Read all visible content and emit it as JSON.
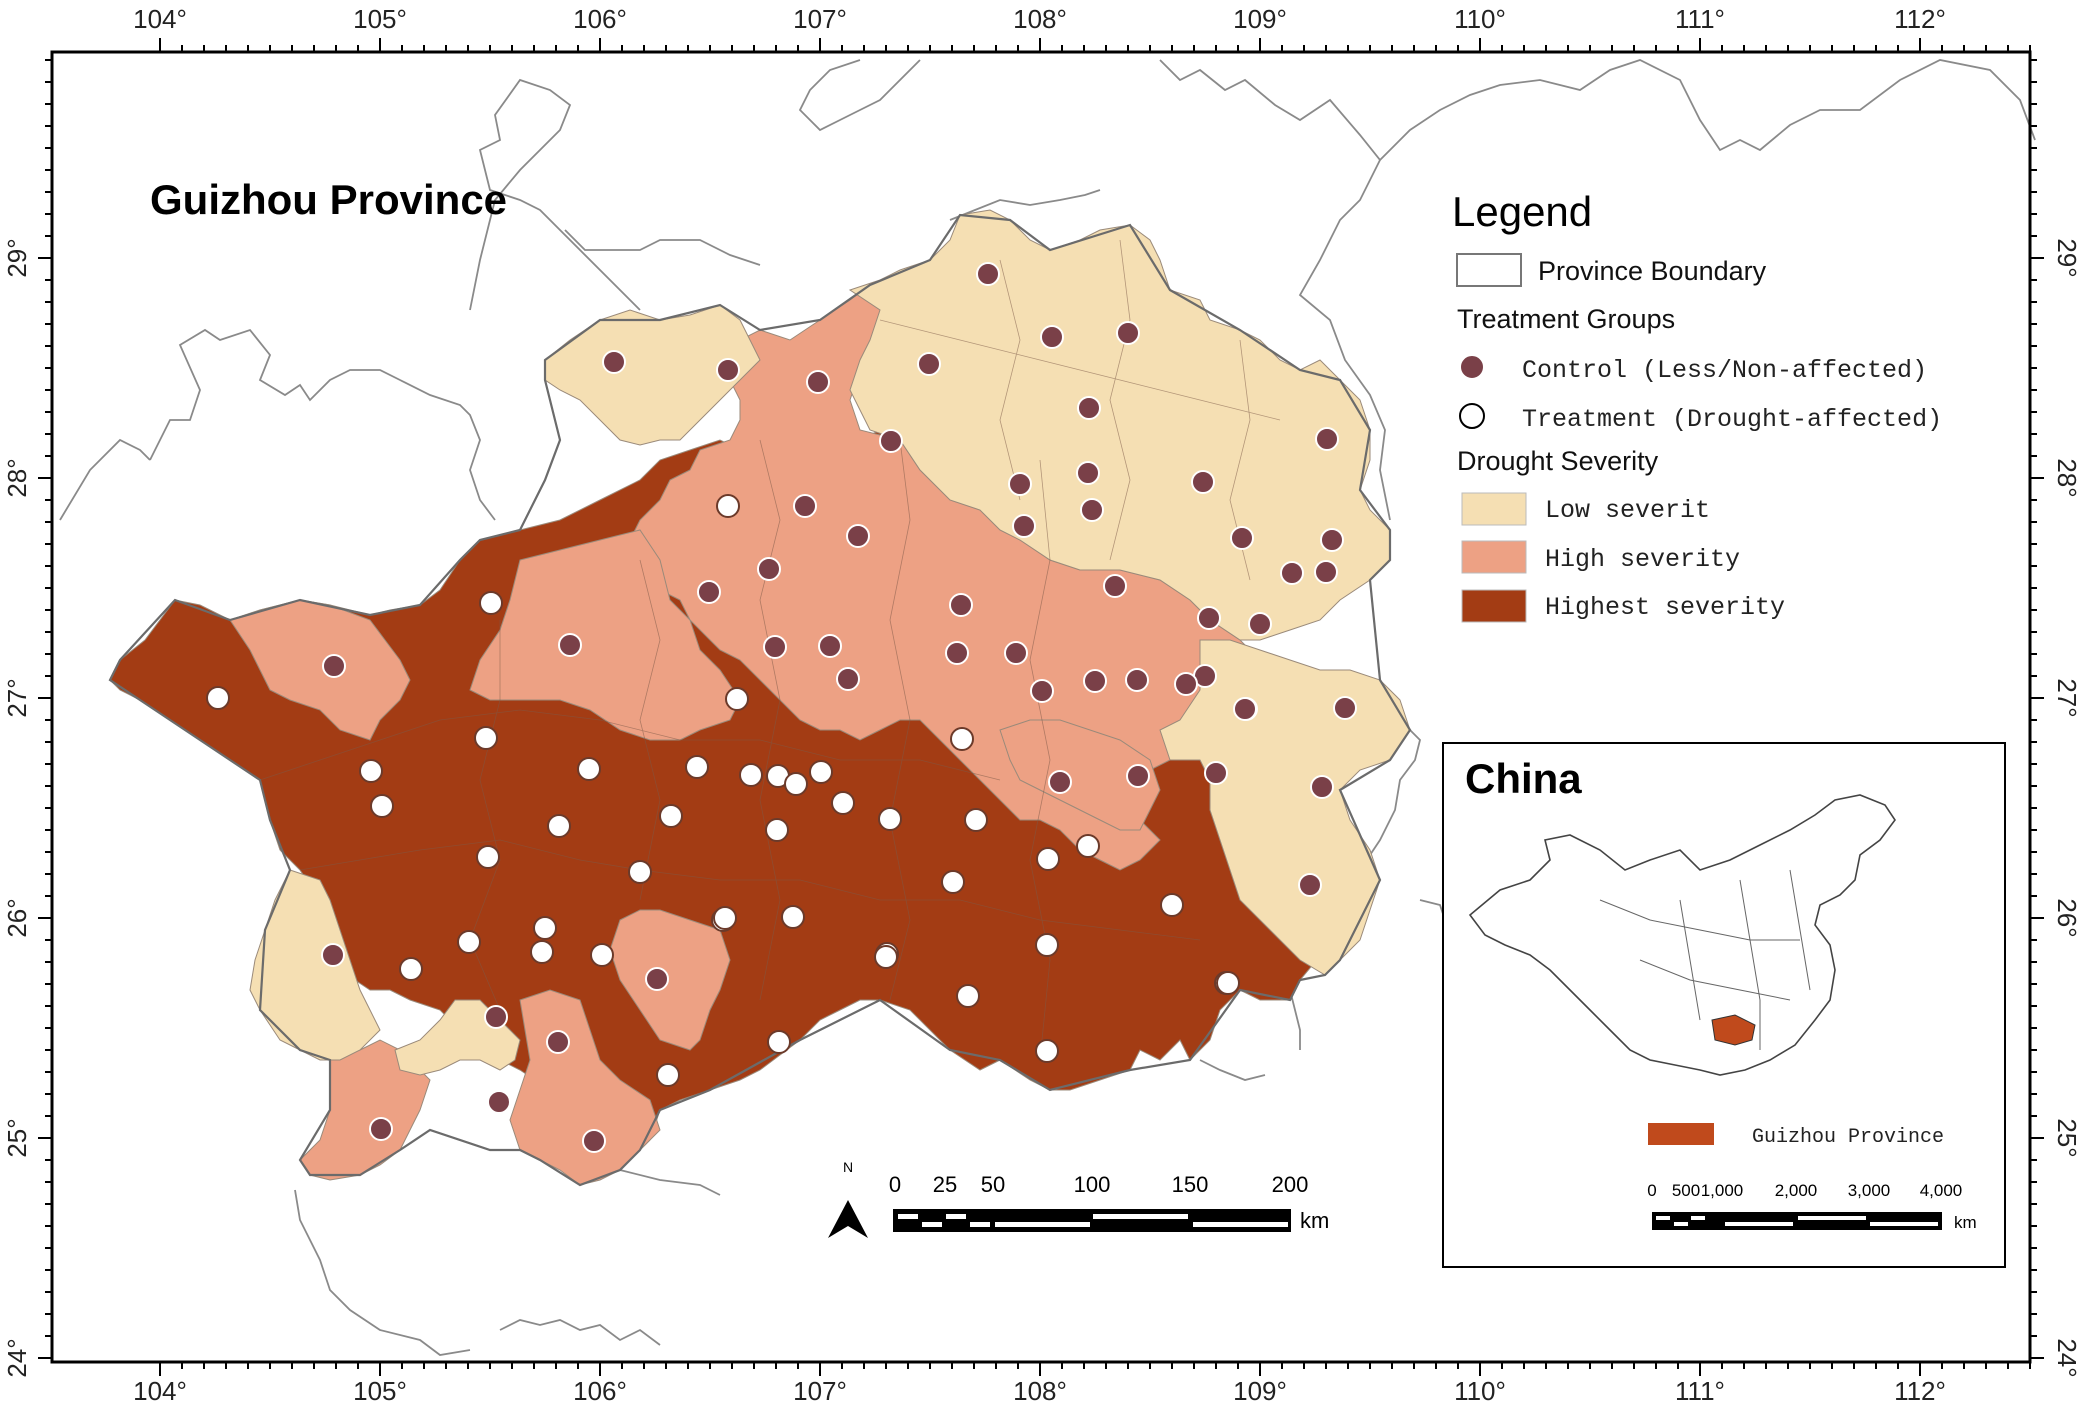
{
  "map": {
    "title": "Guizhou Province",
    "longitude_ticks": [
      "104°",
      "105°",
      "106°",
      "107°",
      "108°",
      "109°",
      "110°",
      "111°",
      "112°"
    ],
    "latitude_ticks": [
      "29°",
      "28°",
      "27°",
      "26°",
      "25°",
      "24°"
    ],
    "colors": {
      "low": "#f5dfb3",
      "high": "#eda184",
      "highest": "#a33c14",
      "control_dot": "#7a4048",
      "boundary": "#777777"
    }
  },
  "legend": {
    "title": "Legend",
    "province_boundary": "Province Boundary",
    "treatment_groups_heading": "Treatment Groups",
    "control_label": "Control (Less/Non-affected)",
    "treatment_label": "Treatment (Drought-affected)",
    "drought_heading": "Drought Severity",
    "low_label": "Low severit",
    "high_label": "High severity",
    "highest_label": "Highest severity"
  },
  "scale_bar": {
    "north": "N",
    "labels": [
      "0",
      "25",
      "50",
      "100",
      "150",
      "200"
    ],
    "unit": "km"
  },
  "inset": {
    "title": "China",
    "province_label": "Guizhou Province",
    "scale_labels": [
      "0",
      "500",
      "1,000",
      "2,000",
      "3,000",
      "4,000"
    ],
    "unit": "km"
  }
}
